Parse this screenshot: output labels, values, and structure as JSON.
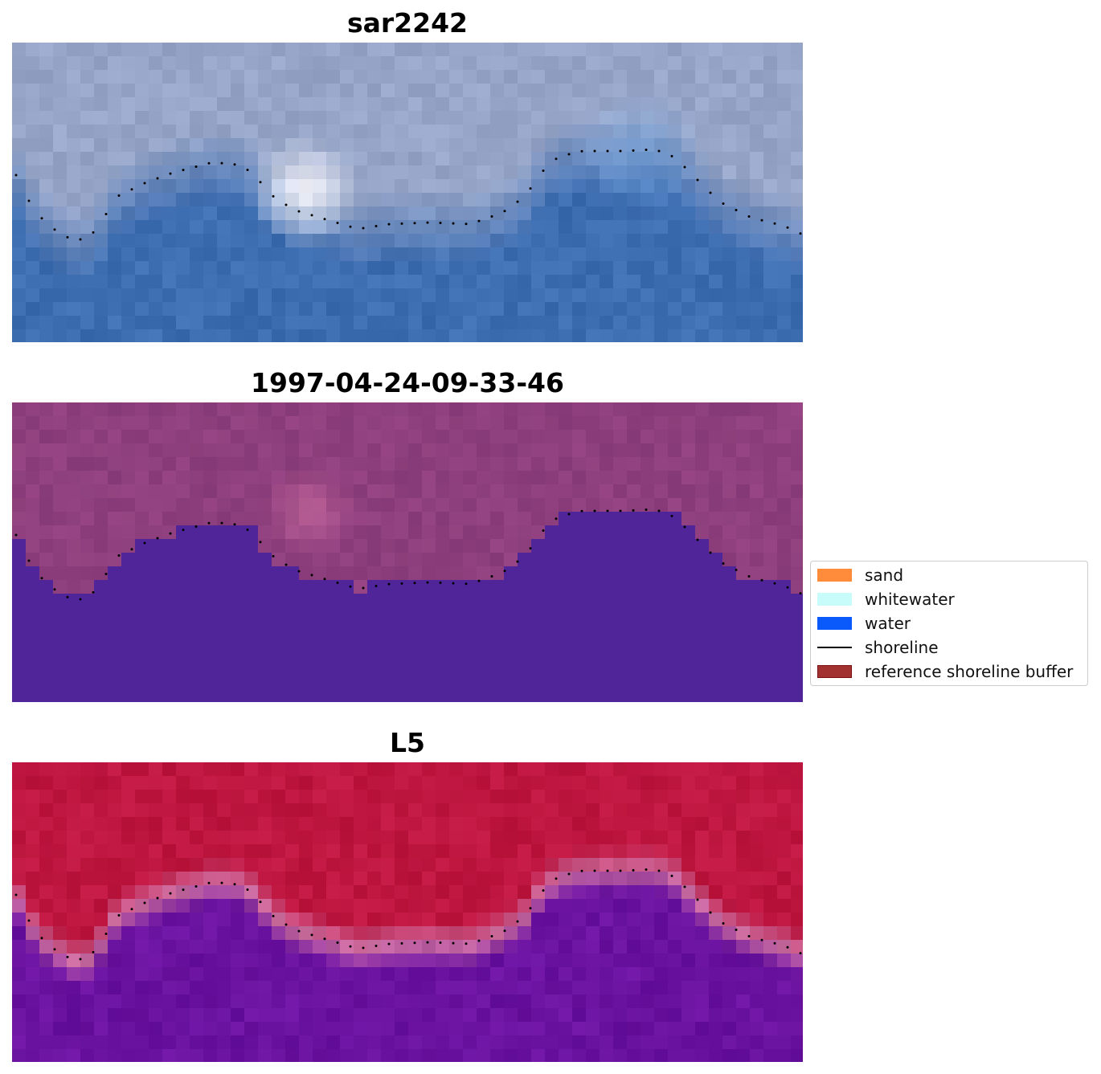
{
  "panels": [
    {
      "title": "sar2242",
      "palette": "sar"
    },
    {
      "title": "1997-04-24-09-33-46",
      "palette": "class"
    },
    {
      "title": "L5",
      "palette": "prob"
    }
  ],
  "legend": [
    {
      "label": "sand",
      "color": "#ff8c3a",
      "kind": "patch"
    },
    {
      "label": "whitewater",
      "color": "#c8fcfa",
      "kind": "patch"
    },
    {
      "label": "water",
      "color": "#0a59fb",
      "kind": "patch"
    },
    {
      "label": "shoreline",
      "color": "#000000",
      "kind": "line"
    },
    {
      "label": "reference shoreline buffer",
      "color": "#a23232",
      "kind": "patch",
      "edge": "#7a1010"
    }
  ],
  "colors": {
    "water_class": "#51259a",
    "land_class": "#8e3f7d",
    "land_prob": "#bf163f",
    "water_prob": "#6a12a0",
    "shoreline": "#000000"
  }
}
